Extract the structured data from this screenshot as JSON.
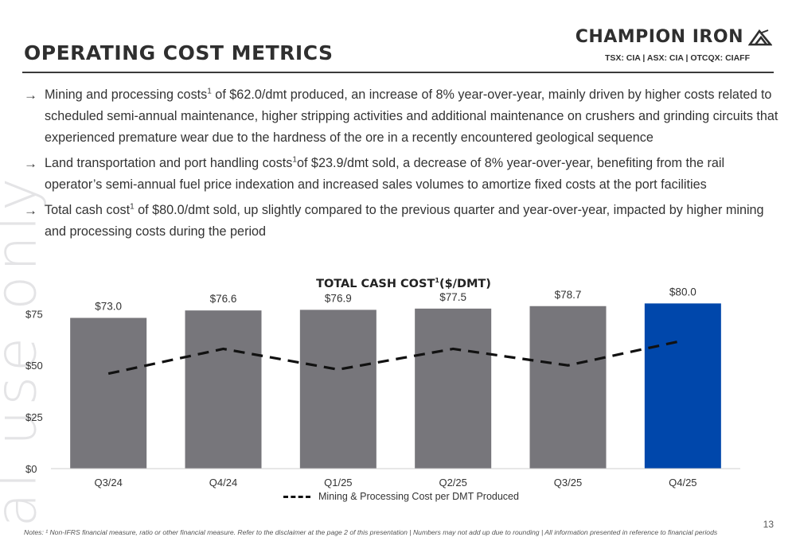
{
  "header": {
    "title": "OPERATING COST METRICS",
    "logo_text": "CHAMPION IRON",
    "tickers": "TSX: CIA  | ASX: CIA | OTCQX: CIAFF"
  },
  "watermark": "al use only",
  "bullets": [
    {
      "pre": "Mining and processing costs",
      "sup": "1",
      "post": " of $62.0/dmt produced, an increase of 8% year-over-year, mainly driven by higher costs related to scheduled semi-annual maintenance, higher stripping activities and additional maintenance on crushers and grinding circuits that experienced premature wear due to the hardness of the ore in a recently encountered geological sequence"
    },
    {
      "pre": "Land transportation and port handling costs",
      "sup": "1",
      "post": "of $23.9/dmt sold, a decrease of 8% year-over-year, benefiting from the rail operator’s semi-annual fuel price indexation and increased sales volumes to amortize fixed costs at the port facilities"
    },
    {
      "pre": "Total cash cost",
      "sup": "1",
      "post": " of $80.0/dmt sold, up slightly compared to the previous quarter and year-over-year, impacted by higher mining and processing costs during the period"
    }
  ],
  "chart_data": {
    "type": "bar",
    "title": "TOTAL CASH COST",
    "title_sup": "1",
    "title_suffix": "($/DMT)",
    "categories": [
      "Q3/24",
      "Q4/24",
      "Q1/25",
      "Q2/25",
      "Q3/25",
      "Q4/25"
    ],
    "series": [
      {
        "kind": "bar",
        "values": [
          73.0,
          76.6,
          76.9,
          77.5,
          78.7,
          80.0
        ],
        "labels": [
          "$73.0",
          "$76.6",
          "$76.9",
          "$77.5",
          "$78.7",
          "$80.0"
        ],
        "colors": [
          "#77767b",
          "#77767b",
          "#77767b",
          "#77767b",
          "#77767b",
          "#0047ab"
        ]
      },
      {
        "kind": "line",
        "style": "dashed",
        "name": "Mining & Processing Cost per DMT Produced",
        "values": [
          46,
          58,
          48,
          58,
          50,
          62
        ],
        "color": "#111111"
      }
    ],
    "yticks": [
      0,
      25,
      50,
      75
    ],
    "ytick_labels": [
      "$0",
      "$25",
      "$50",
      "$75"
    ],
    "ylim": [
      0,
      84
    ],
    "grid": false,
    "legend": "bottom"
  },
  "footnote": "Notes: ¹ Non-IFRS financial measure, ratio or other financial measure. Refer to the disclaimer at the page 2 of this presentation | Numbers may not add up due to rounding | All information presented in reference to financial periods",
  "page_number": "13"
}
